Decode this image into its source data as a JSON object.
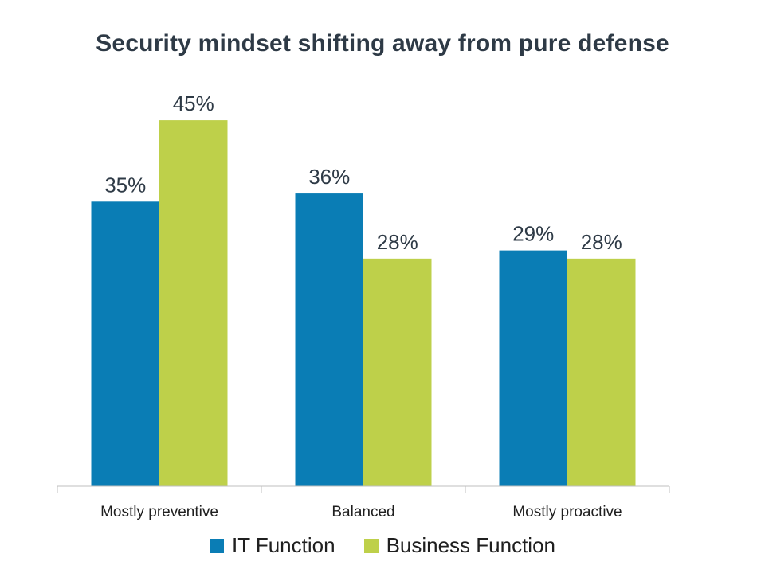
{
  "chart_data": {
    "type": "bar",
    "title": "Security mindset shifting away from pure defense",
    "categories": [
      "Mostly preventive",
      "Balanced",
      "Mostly proactive"
    ],
    "series": [
      {
        "name": "IT Function",
        "values": [
          35,
          36,
          29
        ],
        "labels": [
          "35%",
          "36%",
          "29%"
        ],
        "color": "#0a7db5"
      },
      {
        "name": "Business Function",
        "values": [
          45,
          28,
          28
        ],
        "labels": [
          "45%",
          "28%",
          "28%"
        ],
        "color": "#bed04a"
      }
    ],
    "ylim": [
      0,
      48
    ],
    "grid": false,
    "legend_position": "bottom"
  }
}
